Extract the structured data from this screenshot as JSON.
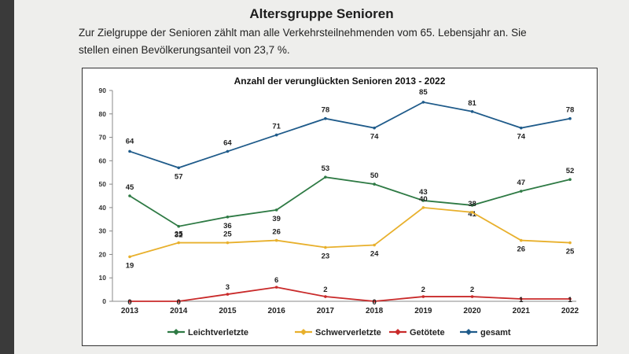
{
  "page": {
    "heading": "Altersgruppe Senioren",
    "intro_line1": "Zur Zielgruppe der Senioren zählt man alle Verkehrsteilnehmenden vom 65. Lebensjahr an. Sie",
    "intro_line2": "stellen einen Bevölkerungsanteil von 23,7 %."
  },
  "chart_data": {
    "type": "line",
    "title": "Anzahl der verunglückten Senioren 2013 - 2022",
    "xlabel": "",
    "ylabel": "",
    "categories": [
      "2013",
      "2014",
      "2015",
      "2016",
      "2017",
      "2018",
      "2019",
      "2020",
      "2021",
      "2022"
    ],
    "ylim": [
      0,
      90
    ],
    "yticks": [
      0,
      10,
      20,
      30,
      40,
      50,
      60,
      70,
      80,
      90
    ],
    "grid": false,
    "legend": "bottom",
    "series": [
      {
        "name": "Leichtverletzte",
        "color": "#2e7a44",
        "values": [
          45,
          32,
          36,
          39,
          53,
          50,
          43,
          41,
          47,
          52
        ]
      },
      {
        "name": "Schwerverletzte",
        "color": "#e8b02c",
        "values": [
          19,
          25,
          25,
          26,
          23,
          24,
          40,
          38,
          26,
          25
        ]
      },
      {
        "name": "Getötete",
        "color": "#c92a2a",
        "values": [
          0,
          0,
          3,
          6,
          2,
          0,
          2,
          2,
          1,
          1
        ]
      },
      {
        "name": "gesamt",
        "color": "#1f5b8a",
        "values": [
          64,
          57,
          64,
          71,
          78,
          74,
          85,
          81,
          74,
          78
        ]
      }
    ]
  }
}
